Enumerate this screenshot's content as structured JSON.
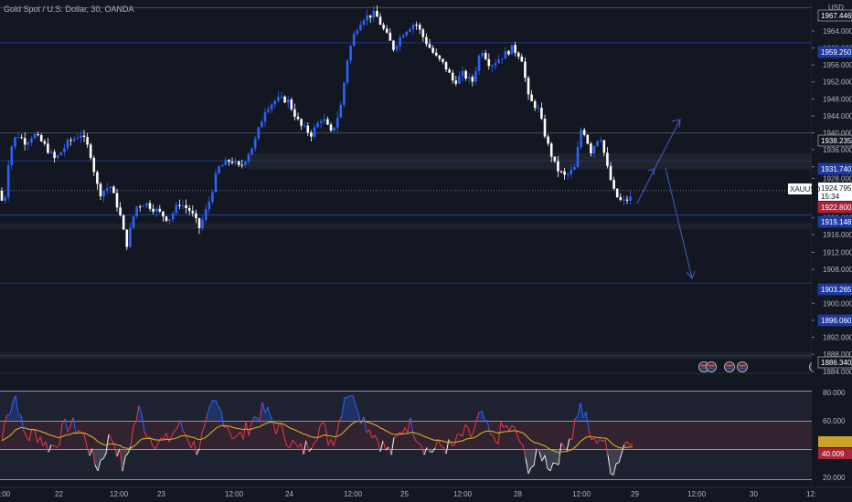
{
  "header": {
    "title": "Gold Spot / U.S. Dollar, 30, OANDA"
  },
  "price_axis": {
    "currency": "USD",
    "ticks": [
      "1964.000",
      "1960.000",
      "1956.000",
      "1952.000",
      "1948.000",
      "1944.000",
      "1940.000",
      "1936.000",
      "1932.000",
      "1928.000",
      "1920.000",
      "1916.000",
      "1912.000",
      "1908.000",
      "1900.000",
      "1896.000",
      "1892.000",
      "1888.000",
      "1884.000"
    ],
    "levels": [
      {
        "label": "1967.446",
        "style": "outline"
      },
      {
        "label": "1959.250",
        "style": "blue"
      },
      {
        "label": "1938.235",
        "style": "outline"
      },
      {
        "label": "1931.740",
        "style": "blue"
      },
      {
        "label": "1922.800",
        "style": "red"
      },
      {
        "label": "1919.148",
        "style": "blue"
      },
      {
        "label": "1903.265",
        "style": "blue"
      },
      {
        "label": "1896.060",
        "style": "blue"
      },
      {
        "label": "1886.340",
        "style": "outline"
      }
    ],
    "current": {
      "symbol": "XAUUSD",
      "price": "1924.795",
      "countdown": "15:34"
    }
  },
  "indicator_axis": {
    "ticks": [
      "80.000",
      "60.000",
      "20.000"
    ],
    "current_label": "40.009",
    "ma_label": ""
  },
  "time_axis": {
    "labels": [
      ":00",
      "22",
      "12:00",
      "23",
      "12:00",
      "24",
      "12:00",
      "25",
      "12:00",
      "28",
      "12:00",
      "29",
      "12:00",
      "30",
      "12:"
    ]
  },
  "colors": {
    "up": "#2962ff",
    "down": "#ffffff",
    "background": "#131722",
    "rsi_up": "#2962ff",
    "rsi_down": "#f23645",
    "rsi_ma": "#c9a227"
  }
}
